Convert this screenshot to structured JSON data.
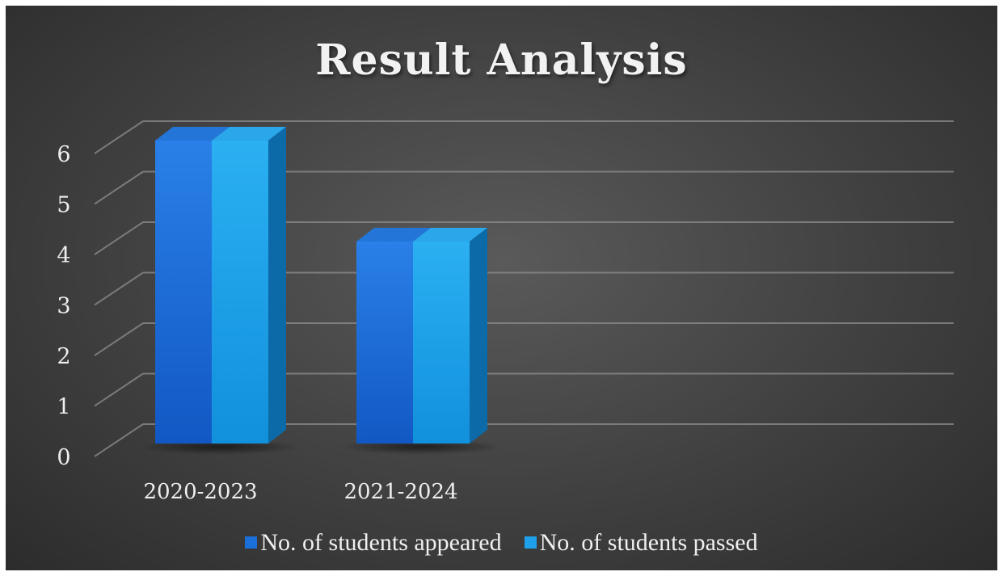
{
  "chart_data": {
    "type": "bar",
    "title": "Result Analysis",
    "categories": [
      "2020-2023",
      "2021-2024"
    ],
    "series": [
      {
        "name": "No. of students appeared",
        "values": [
          6,
          4
        ],
        "color": "#1a6fd8"
      },
      {
        "name": "No. of students passed",
        "values": [
          6,
          4
        ],
        "color": "#1ea0ea"
      }
    ],
    "yticks": [
      "0",
      "1",
      "2",
      "3",
      "4",
      "5",
      "6"
    ],
    "ylim": [
      0,
      6
    ],
    "grid": true,
    "legend_position": "bottom",
    "style": "3d-clustered-column"
  }
}
